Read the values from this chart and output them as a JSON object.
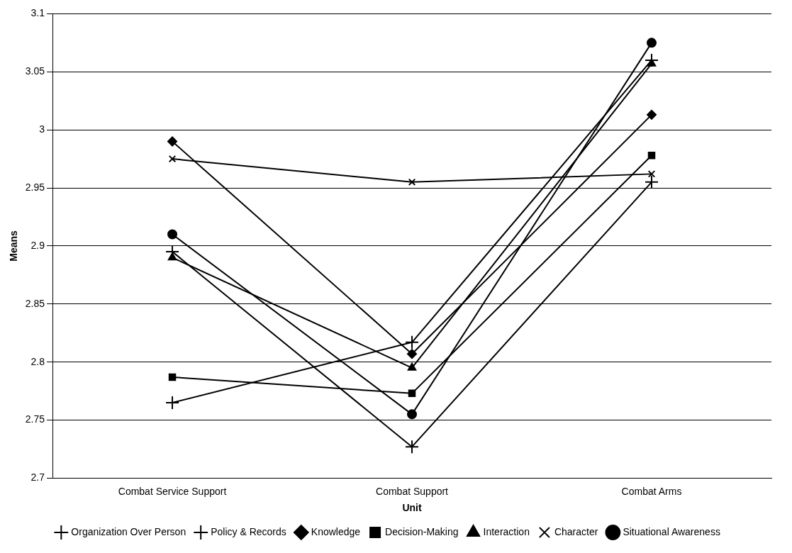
{
  "chart_data": {
    "type": "line",
    "xlabel": "Unit",
    "ylabel": "Means",
    "categories": [
      "Combat Service Support",
      "Combat Support",
      "Combat Arms"
    ],
    "series": [
      {
        "name": "Knowledge",
        "color": "#000000",
        "marker": "diamond",
        "values": [
          2.99,
          2.807,
          3.013
        ]
      },
      {
        "name": "Decision-Making",
        "color": "#000000",
        "marker": "square",
        "values": [
          2.787,
          2.773,
          2.978
        ]
      },
      {
        "name": "Interaction",
        "color": "#000000",
        "marker": "triangle",
        "values": [
          2.89,
          2.795,
          3.057
        ]
      },
      {
        "name": "Character",
        "color": "#000000",
        "marker": "x",
        "values": [
          2.975,
          2.955,
          2.962
        ]
      },
      {
        "name": "Organization Over Person",
        "color": "#000000",
        "marker": "cross",
        "values": [
          2.765,
          2.817,
          3.06
        ]
      },
      {
        "name": "Situational Awareness",
        "color": "#000000",
        "marker": "circle",
        "values": [
          2.91,
          2.755,
          3.075
        ]
      },
      {
        "name": "Policy & Records",
        "color": "#000000",
        "marker": "cross",
        "values": [
          2.895,
          2.727,
          2.955
        ]
      }
    ],
    "ylim": [
      2.7,
      3.1
    ],
    "yticks": [
      2.7,
      2.75,
      2.8,
      2.85,
      2.9,
      2.95,
      3,
      3.05,
      3.1
    ],
    "grid": "y",
    "legend": "bottom",
    "line_style": "solid"
  }
}
